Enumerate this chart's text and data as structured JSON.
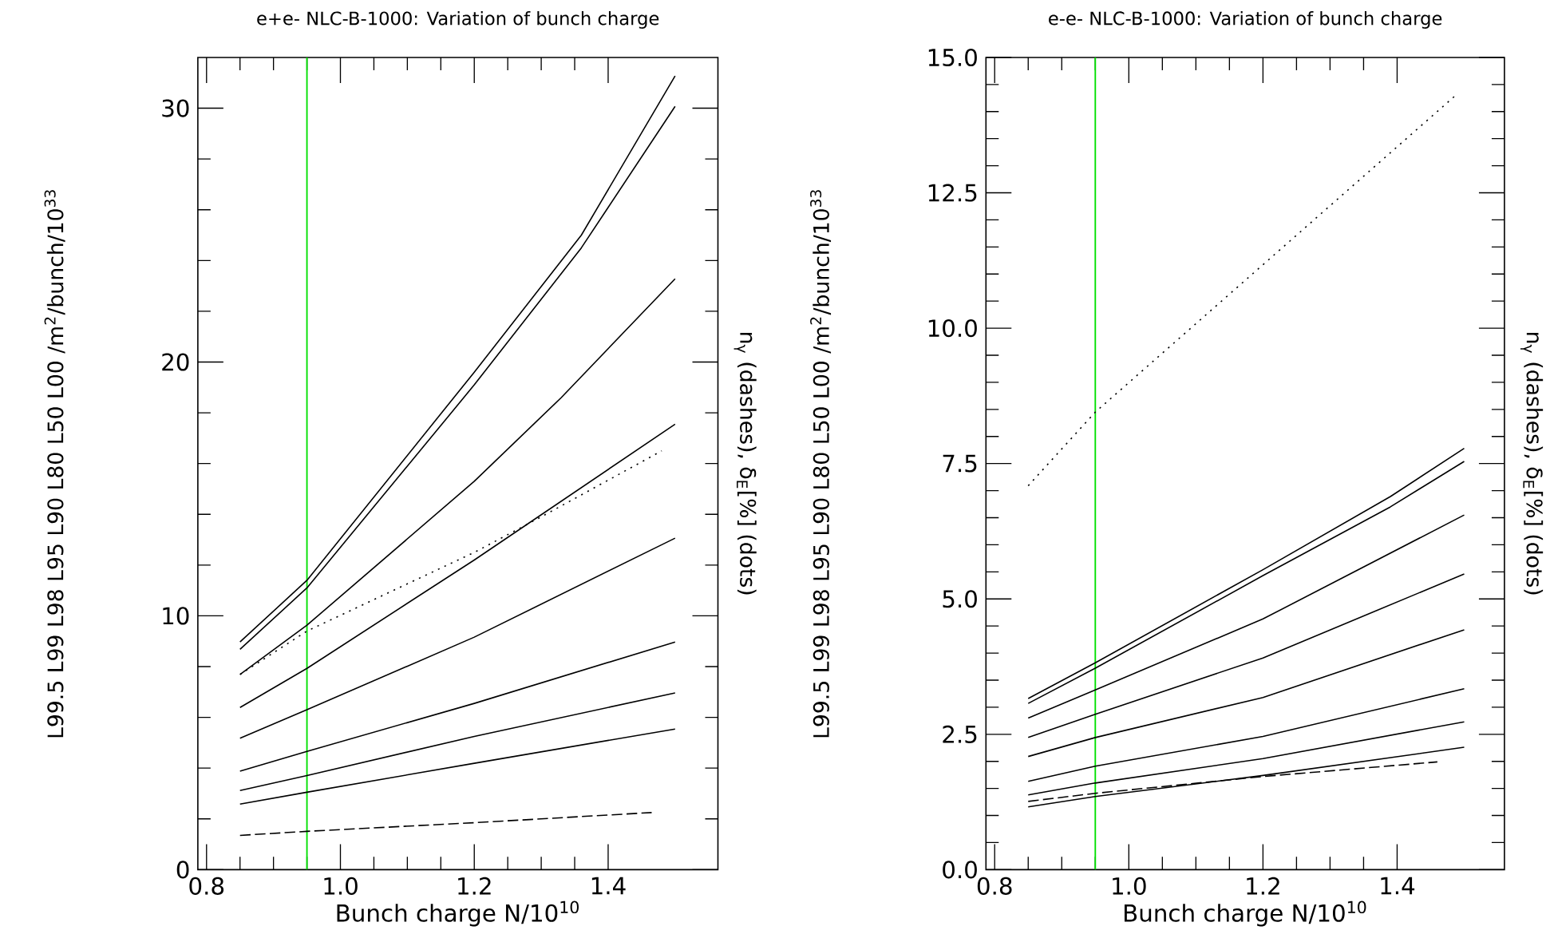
{
  "chart_data": [
    {
      "type": "line",
      "title": "e+e- NLC-B-1000: Variation of bunch charge",
      "xlabel": "Bunch charge N/10$^{10}$",
      "ylabel": "L99.5   L99   L98   L95   L90   L80   L50   L00   /m$^{2}$/bunch/10$^{33}$",
      "y2label": "n$_{γ}$ (dashes), δ$_{E}$[%] (dots)",
      "xlim": [
        0.787,
        1.564
      ],
      "ylim": [
        0,
        32
      ],
      "xticks": [
        0.8,
        {
          "value": 1.0,
          "label": "1.0"
        },
        1.2,
        1.4
      ],
      "yticks": [
        0,
        10,
        20,
        30
      ],
      "grid": false,
      "marker": "none",
      "ref_lines": [
        {
          "axis": "x",
          "value": 0.95,
          "color": "#00e000",
          "line_style": "solid"
        }
      ],
      "series": [
        {
          "color": "#000000",
          "line_style": "solid",
          "x": [
            0.85,
            0.95,
            1.2,
            1.36,
            1.5
          ],
          "values": [
            8.97,
            11.4,
            19.6,
            25.0,
            31.27
          ]
        },
        {
          "color": "#000000",
          "line_style": "solid",
          "x": [
            0.85,
            0.95,
            1.2,
            1.36,
            1.5
          ],
          "values": [
            8.68,
            11.1,
            19.1,
            24.5,
            30.07
          ]
        },
        {
          "color": "#000000",
          "line_style": "solid",
          "x": [
            0.85,
            0.95,
            1.2,
            1.33,
            1.5
          ],
          "values": [
            7.69,
            9.63,
            15.3,
            18.6,
            23.28
          ]
        },
        {
          "color": "#000000",
          "line_style": "solid",
          "x": [
            0.85,
            0.95,
            1.2,
            1.5
          ],
          "values": [
            6.39,
            7.93,
            12.2,
            17.55
          ]
        },
        {
          "color": "#000000",
          "line_style": "solid",
          "x": [
            0.85,
            0.95,
            1.2,
            1.5
          ],
          "values": [
            5.18,
            6.3,
            9.16,
            13.06
          ]
        },
        {
          "color": "#000000",
          "line_style": "solid",
          "x": [
            0.85,
            0.95,
            1.2,
            1.5
          ],
          "values": [
            3.88,
            4.66,
            6.55,
            8.97
          ]
        },
        {
          "color": "#000000",
          "line_style": "solid",
          "x": [
            0.85,
            0.95,
            1.2,
            1.5
          ],
          "values": [
            3.12,
            3.71,
            5.25,
            6.96
          ]
        },
        {
          "color": "#000000",
          "line_style": "solid",
          "x": [
            0.85,
            0.95,
            1.2,
            1.5
          ],
          "values": [
            2.58,
            3.05,
            4.19,
            5.54
          ]
        },
        {
          "color": "#000000",
          "line_style": "dashed",
          "x": [
            0.85,
            0.95,
            1.2,
            1.465
          ],
          "values": [
            1.35,
            1.51,
            1.85,
            2.25
          ]
        },
        {
          "color": "#000000",
          "line_style": "dotted",
          "x": [
            0.85,
            0.95,
            1.2,
            1.3,
            1.48
          ],
          "values": [
            7.69,
            9.4,
            12.5,
            13.9,
            16.5
          ]
        }
      ]
    },
    {
      "type": "line",
      "title": "e-e- NLC-B-1000: Variation of bunch charge",
      "xlabel": "Bunch charge N/10$^{10}$",
      "ylabel": "L99.5   L99   L98   L95   L90   L80   L50   L00   /m$^{2}$/bunch/10$^{33}$",
      "y2label": "n$_{γ}$ (dashes), δ$_{E}$[%] (dots)",
      "xlim": [
        0.787,
        1.56
      ],
      "ylim": [
        0,
        15
      ],
      "xticks": [
        0.8,
        {
          "value": 1.0,
          "label": "1.0"
        },
        1.2,
        1.4
      ],
      "yticks": [
        {
          "value": 0,
          "label": "0.0"
        },
        2.5,
        {
          "value": 5,
          "label": "5.0"
        },
        7.5,
        {
          "value": 10,
          "label": "10.0"
        },
        12.5,
        {
          "value": 15,
          "label": "15.0"
        }
      ],
      "grid": false,
      "marker": "none",
      "ref_lines": [
        {
          "axis": "x",
          "value": 0.95,
          "color": "#00e000",
          "line_style": "solid"
        }
      ],
      "series": [
        {
          "color": "#000000",
          "line_style": "solid",
          "x": [
            0.85,
            0.95,
            1.2,
            1.39,
            1.5
          ],
          "values": [
            3.16,
            3.82,
            5.54,
            6.89,
            7.78
          ]
        },
        {
          "color": "#000000",
          "line_style": "solid",
          "x": [
            0.85,
            0.95,
            1.2,
            1.39,
            1.5
          ],
          "values": [
            3.07,
            3.72,
            5.43,
            6.7,
            7.54
          ]
        },
        {
          "color": "#000000",
          "line_style": "solid",
          "x": [
            0.85,
            0.95,
            1.2,
            1.5
          ],
          "values": [
            2.8,
            3.32,
            4.63,
            6.55
          ]
        },
        {
          "color": "#000000",
          "line_style": "solid",
          "x": [
            0.85,
            0.95,
            1.2,
            1.5
          ],
          "values": [
            2.44,
            2.87,
            3.91,
            5.46
          ]
        },
        {
          "color": "#000000",
          "line_style": "solid",
          "x": [
            0.85,
            0.95,
            1.2,
            1.5
          ],
          "values": [
            2.09,
            2.44,
            3.18,
            4.43
          ]
        },
        {
          "color": "#000000",
          "line_style": "solid",
          "x": [
            0.85,
            0.95,
            1.2,
            1.5
          ],
          "values": [
            1.63,
            1.91,
            2.46,
            3.34
          ]
        },
        {
          "color": "#000000",
          "line_style": "solid",
          "x": [
            0.85,
            0.95,
            1.2,
            1.5
          ],
          "values": [
            1.38,
            1.6,
            2.05,
            2.73
          ]
        },
        {
          "color": "#000000",
          "line_style": "solid",
          "x": [
            0.85,
            0.95,
            1.2,
            1.5
          ],
          "values": [
            1.16,
            1.35,
            1.74,
            2.26
          ]
        },
        {
          "color": "#000000",
          "line_style": "dashed",
          "x": [
            0.85,
            0.95,
            1.2,
            1.46
          ],
          "values": [
            1.26,
            1.41,
            1.72,
            1.99
          ]
        },
        {
          "color": "#000000",
          "line_style": "dotted",
          "x": [
            0.85,
            0.95,
            1.49
          ],
          "values": [
            7.09,
            8.45,
            14.33
          ]
        }
      ]
    }
  ]
}
